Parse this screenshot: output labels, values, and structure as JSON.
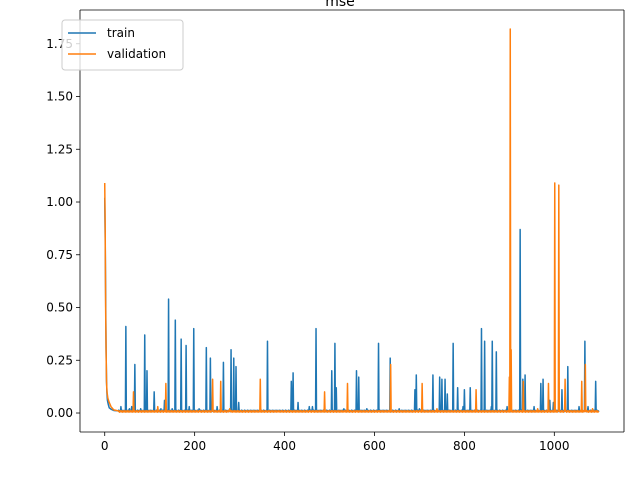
{
  "chart_data": {
    "type": "line",
    "title": "mse",
    "xlabel": "",
    "ylabel": "",
    "xlim": [
      -55,
      1155
    ],
    "ylim": [
      -0.09,
      1.91
    ],
    "x_ticks": [
      0,
      200,
      400,
      600,
      800,
      1000
    ],
    "x_tick_labels": [
      "0",
      "200",
      "400",
      "600",
      "800",
      "1000"
    ],
    "y_ticks": [
      0.0,
      0.25,
      0.5,
      0.75,
      1.0,
      1.25,
      1.5,
      1.75
    ],
    "y_tick_labels": [
      "0.00",
      "0.25",
      "0.50",
      "0.75",
      "1.00",
      "1.25",
      "1.50",
      "1.75"
    ],
    "grid": false,
    "legend_position": "upper-left",
    "n_epochs": 1100,
    "series": [
      {
        "name": "train",
        "color": "#1f77b4",
        "initial": [
          [
            0,
            1.02
          ],
          [
            1,
            0.83
          ],
          [
            2,
            0.57
          ],
          [
            3,
            0.3
          ],
          [
            4,
            0.15
          ],
          [
            5,
            0.09
          ],
          [
            6,
            0.06
          ],
          [
            8,
            0.04
          ],
          [
            10,
            0.025
          ],
          [
            14,
            0.018
          ],
          [
            20,
            0.012
          ],
          [
            30,
            0.01
          ]
        ],
        "baseline": 0.006,
        "spikes": [
          [
            12,
            0.09
          ],
          [
            17,
            0.19
          ],
          [
            28,
            0.02
          ],
          [
            36,
            0.03
          ],
          [
            47,
            0.41
          ],
          [
            55,
            0.02
          ],
          [
            60,
            0.03
          ],
          [
            67,
            0.23
          ],
          [
            80,
            0.02
          ],
          [
            89,
            0.37
          ],
          [
            94,
            0.2
          ],
          [
            110,
            0.1
          ],
          [
            125,
            0.02
          ],
          [
            133,
            0.06
          ],
          [
            142,
            0.54
          ],
          [
            150,
            0.02
          ],
          [
            157,
            0.44
          ],
          [
            170,
            0.35
          ],
          [
            181,
            0.32
          ],
          [
            188,
            0.03
          ],
          [
            198,
            0.4
          ],
          [
            210,
            0.02
          ],
          [
            226,
            0.31
          ],
          [
            235,
            0.26
          ],
          [
            250,
            0.03
          ],
          [
            264,
            0.24
          ],
          [
            281,
            0.3
          ],
          [
            287,
            0.26
          ],
          [
            292,
            0.22
          ],
          [
            298,
            0.05
          ],
          [
            340,
            0.01
          ],
          [
            362,
            0.34
          ],
          [
            385,
            0.01
          ],
          [
            415,
            0.15
          ],
          [
            419,
            0.19
          ],
          [
            430,
            0.05
          ],
          [
            455,
            0.03
          ],
          [
            462,
            0.03
          ],
          [
            470,
            0.4
          ],
          [
            505,
            0.2
          ],
          [
            512,
            0.33
          ],
          [
            515,
            0.12
          ],
          [
            532,
            0.02
          ],
          [
            560,
            0.2
          ],
          [
            565,
            0.17
          ],
          [
            583,
            0.02
          ],
          [
            609,
            0.33
          ],
          [
            635,
            0.26
          ],
          [
            655,
            0.02
          ],
          [
            690,
            0.11
          ],
          [
            693,
            0.18
          ],
          [
            700,
            0.02
          ],
          [
            730,
            0.18
          ],
          [
            745,
            0.17
          ],
          [
            750,
            0.16
          ],
          [
            757,
            0.16
          ],
          [
            762,
            0.09
          ],
          [
            775,
            0.33
          ],
          [
            785,
            0.12
          ],
          [
            797,
            0.03
          ],
          [
            800,
            0.11
          ],
          [
            813,
            0.12
          ],
          [
            838,
            0.4
          ],
          [
            845,
            0.34
          ],
          [
            860,
            0.03
          ],
          [
            862,
            0.34
          ],
          [
            871,
            0.29
          ],
          [
            895,
            0.03
          ],
          [
            902,
            0.12
          ],
          [
            924,
            0.87
          ],
          [
            930,
            0.16
          ],
          [
            935,
            0.18
          ],
          [
            955,
            0.03
          ],
          [
            970,
            0.14
          ],
          [
            975,
            0.16
          ],
          [
            990,
            0.06
          ],
          [
            998,
            0.05
          ],
          [
            1017,
            0.11
          ],
          [
            1030,
            0.22
          ],
          [
            1055,
            0.03
          ],
          [
            1068,
            0.34
          ],
          [
            1075,
            0.03
          ],
          [
            1092,
            0.15
          ],
          [
            1098,
            0.01
          ]
        ]
      },
      {
        "name": "validation",
        "color": "#ff7f0e",
        "initial": [
          [
            0,
            1.09
          ],
          [
            1,
            0.88
          ],
          [
            2,
            0.5
          ],
          [
            3,
            0.3
          ],
          [
            4,
            0.15
          ],
          [
            5,
            0.1
          ],
          [
            7,
            0.07
          ],
          [
            10,
            0.05
          ],
          [
            14,
            0.03
          ],
          [
            20,
            0.015
          ],
          [
            30,
            0.01
          ]
        ],
        "baseline": 0.004,
        "spikes": [
          [
            24,
            0.16
          ],
          [
            64,
            0.1
          ],
          [
            118,
            0.03
          ],
          [
            136,
            0.14
          ],
          [
            240,
            0.16
          ],
          [
            258,
            0.15
          ],
          [
            278,
            0.02
          ],
          [
            346,
            0.16
          ],
          [
            489,
            0.1
          ],
          [
            540,
            0.14
          ],
          [
            636,
            0.23
          ],
          [
            706,
            0.14
          ],
          [
            739,
            0.02
          ],
          [
            826,
            0.11
          ],
          [
            900,
            0.17
          ],
          [
            902,
            1.82
          ],
          [
            904,
            0.3
          ],
          [
            931,
            0.15
          ],
          [
            963,
            0.02
          ],
          [
            987,
            0.14
          ],
          [
            1001,
            1.09
          ],
          [
            1010,
            1.08
          ],
          [
            1024,
            0.16
          ],
          [
            1061,
            0.15
          ],
          [
            1069,
            0.23
          ],
          [
            1085,
            0.02
          ]
        ]
      }
    ]
  }
}
